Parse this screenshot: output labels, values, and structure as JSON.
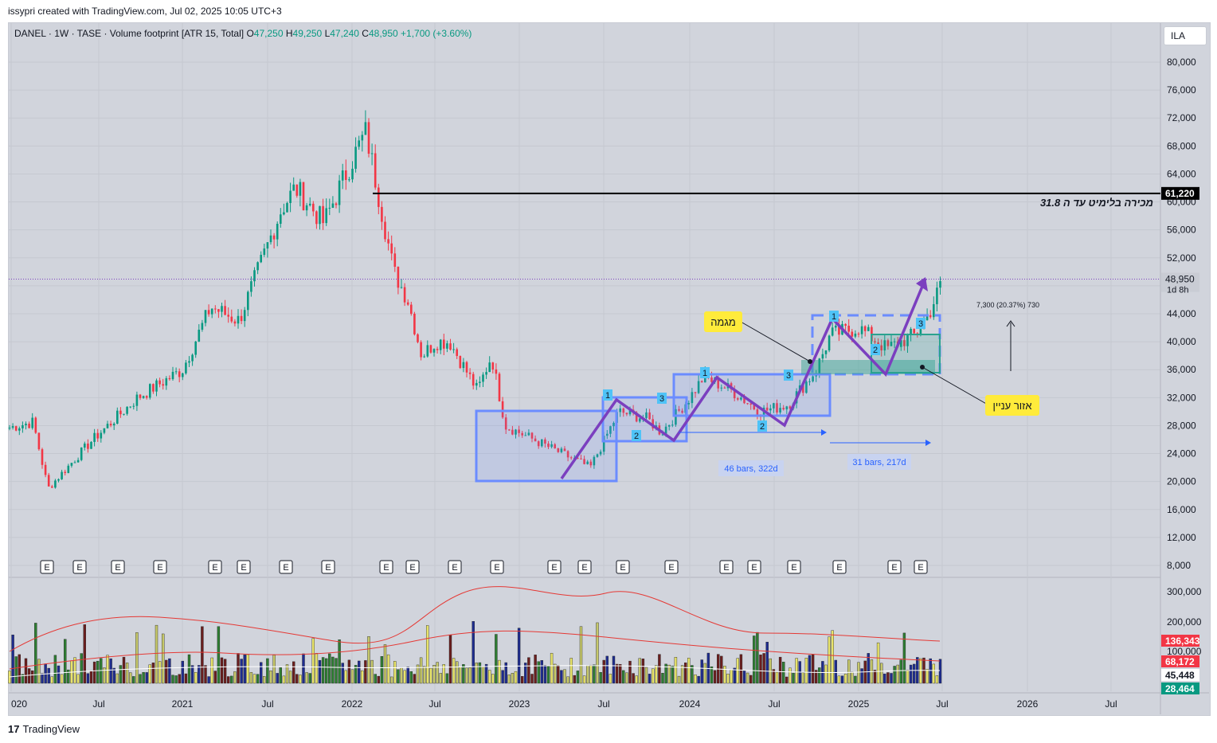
{
  "header": {
    "text": "issypri created with TradingView.com, Jul 02, 2025 10:05 UTC+3"
  },
  "ticker": {
    "symbol": "DANEL · 1W · TASE · Volume footprint [ATR 15, Total]",
    "o_label": "O",
    "o": "47,250",
    "h_label": "H",
    "h": "49,250",
    "l_label": "L",
    "l": "47,240",
    "c_label": "C",
    "c": "48,950",
    "change": "+1,700 (+3.60%)"
  },
  "currency_button": "ILA",
  "footer": {
    "logo": "17",
    "brand": "TradingView"
  },
  "colors": {
    "up": "#089981",
    "down": "#f23645",
    "pattern": "#7b3fbf",
    "box": "#6b8cff",
    "zone": "#2aa28f",
    "note": "#ffeb3b"
  },
  "annotations": {
    "sell_limit": "מכירה בלימיט עד ה 31.8",
    "trend": "מגמה",
    "zone": "אזור עניין",
    "measure1": "46 bars, 322d",
    "measure2": "31 bars, 217d",
    "price_range": "7,300 (20.37%) 730",
    "countdown": "1d 8h",
    "wave_labels": [
      "1",
      "2",
      "3",
      "1",
      "2",
      "3",
      "1",
      "2",
      "3"
    ],
    "earnings_marker": "E"
  },
  "chart_data": {
    "type": "candlestick",
    "title": "",
    "price_axis": {
      "range": [
        8000,
        82000
      ],
      "ticks": [
        "80,000",
        "76,000",
        "72,000",
        "68,000",
        "64,000",
        "60,000",
        "56,000",
        "52,000",
        "48,000",
        "44,000",
        "40,000",
        "36,000",
        "32,000",
        "28,000",
        "24,000",
        "20,000",
        "16,000",
        "12,000",
        "8,000"
      ]
    },
    "time_axis": {
      "ticks": [
        "020",
        "Jul",
        "2021",
        "Jul",
        "2022",
        "Jul",
        "2023",
        "Jul",
        "2024",
        "Jul",
        "2025",
        "Jul",
        "2026",
        "Jul"
      ]
    },
    "price_path_anchors": [
      [
        "2020-01",
        27500
      ],
      [
        "2020-03",
        28500
      ],
      [
        "2020-04",
        19000
      ],
      [
        "2020-07",
        26000
      ],
      [
        "2020-10",
        32000
      ],
      [
        "2021-01",
        36000
      ],
      [
        "2021-03",
        45000
      ],
      [
        "2021-05",
        43000
      ],
      [
        "2021-08",
        59000
      ],
      [
        "2021-09",
        62000
      ],
      [
        "2021-11",
        57000
      ],
      [
        "2022-01",
        66000
      ],
      [
        "2022-02",
        70000
      ],
      [
        "2022-03",
        60000
      ],
      [
        "2022-04",
        50000
      ],
      [
        "2022-05",
        46000
      ],
      [
        "2022-06",
        38000
      ],
      [
        "2022-07",
        40000
      ],
      [
        "2022-08",
        40000
      ],
      [
        "2022-10",
        33000
      ],
      [
        "2022-11",
        38000
      ],
      [
        "2022-12",
        28000
      ],
      [
        "2023-02",
        26000
      ],
      [
        "2023-05",
        23000
      ],
      [
        "2023-06",
        22000
      ],
      [
        "2023-08",
        30000
      ],
      [
        "2023-10",
        29000
      ],
      [
        "2023-11",
        27000
      ],
      [
        "2024-01",
        32000
      ],
      [
        "2024-02",
        35000
      ],
      [
        "2024-04",
        33000
      ],
      [
        "2024-06",
        30000
      ],
      [
        "2024-08",
        31000
      ],
      [
        "2024-10",
        36000
      ],
      [
        "2024-11",
        41000
      ],
      [
        "2025-01",
        42000
      ],
      [
        "2025-03",
        39000
      ],
      [
        "2025-05",
        41000
      ],
      [
        "2025-06",
        44000
      ],
      [
        "2025-07",
        48950
      ]
    ],
    "horizontal_line": {
      "price": 61220,
      "label": "61,220"
    },
    "current_price": {
      "price": 48950,
      "label": "48,950"
    },
    "volume_axis": {
      "ticks": [
        "300,000",
        "200,000",
        "100,000"
      ]
    },
    "volume_badges": [
      {
        "label": "136,343",
        "color": "#f23645"
      },
      {
        "label": "68,172",
        "color": "#f23645"
      },
      {
        "label": "45,448",
        "color": "#ffffff"
      },
      {
        "label": "28,464",
        "color": "#089981"
      }
    ]
  }
}
